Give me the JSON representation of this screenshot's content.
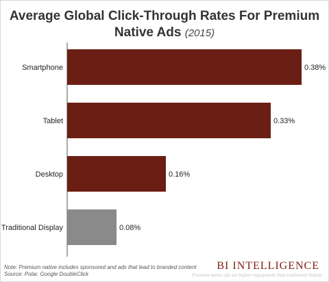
{
  "title": {
    "main_line1": "Average Global Click-Through Rates For Premium",
    "main_line2": "Native Ads",
    "year": "(2015)"
  },
  "chart_data": {
    "type": "bar",
    "orientation": "horizontal",
    "categories": [
      "Smartphone",
      "Tablet",
      "Desktop",
      "Traditional Display"
    ],
    "values": [
      0.38,
      0.33,
      0.16,
      0.08
    ],
    "value_labels": [
      "0.38%",
      "0.33%",
      "0.16%",
      "0.08%"
    ],
    "bar_colors": [
      "#6b1e14",
      "#6b1e14",
      "#6b1e14",
      "#8a8a8a"
    ],
    "xlim": [
      0,
      0.38
    ],
    "grid": false,
    "legend": "none"
  },
  "footer": {
    "note": "Note: Premium native includes sponsored and ads that lead to branded content",
    "source": "Source: Polar, Google DoubleClick",
    "brand": "BI INTELLIGENCE",
    "brand_sub": "Premium native ads see higher engagement than traditional display"
  }
}
